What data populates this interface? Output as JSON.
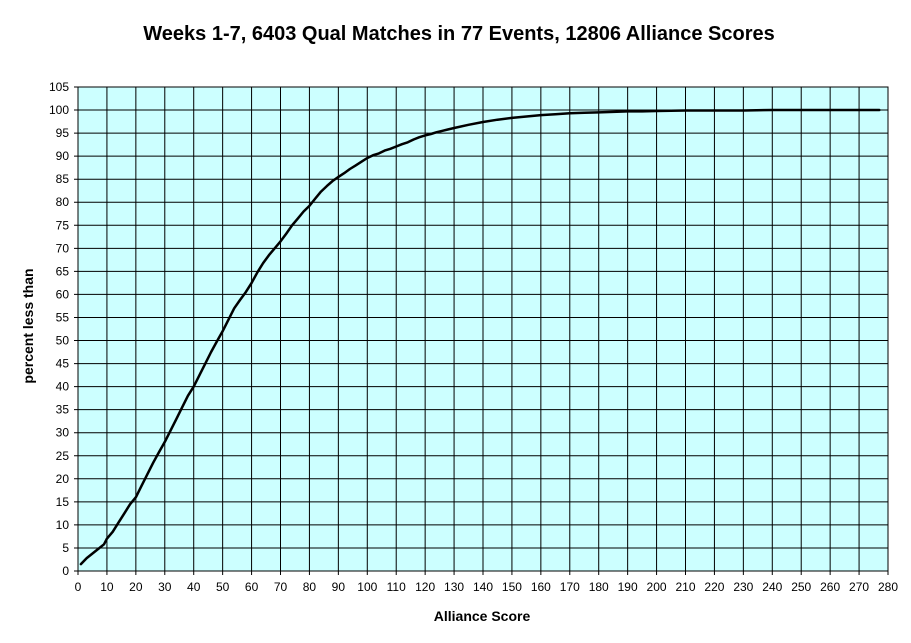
{
  "chart_data": {
    "type": "line",
    "title": "Weeks 1-7, 6403 Qual Matches in 77 Events, 12806 Alliance Scores",
    "xlabel": "Alliance Score",
    "ylabel": "percent less than",
    "xlim": [
      0,
      280
    ],
    "ylim": [
      0,
      105
    ],
    "x_ticks": [
      0,
      10,
      20,
      30,
      40,
      50,
      60,
      70,
      80,
      90,
      100,
      110,
      120,
      130,
      140,
      150,
      160,
      170,
      180,
      190,
      200,
      210,
      220,
      230,
      240,
      250,
      260,
      270,
      280
    ],
    "y_ticks": [
      0,
      5,
      10,
      15,
      20,
      25,
      30,
      35,
      40,
      45,
      50,
      55,
      60,
      65,
      70,
      75,
      80,
      85,
      90,
      95,
      100,
      105
    ],
    "grid": true,
    "legend": "none",
    "colors": {
      "plot_background": "#ccffff",
      "grid": "#000000",
      "line": "#000000"
    },
    "series": [
      {
        "x": [
          1,
          3,
          5,
          7,
          9,
          10,
          12,
          14,
          16,
          18,
          20,
          22,
          24,
          26,
          28,
          30,
          32,
          34,
          36,
          38,
          40,
          42,
          44,
          46,
          48,
          50,
          52,
          54,
          56,
          58,
          60,
          62,
          64,
          66,
          68,
          70,
          72,
          74,
          76,
          78,
          80,
          82,
          84,
          86,
          88,
          90,
          92,
          94,
          96,
          98,
          100,
          102,
          104,
          106,
          108,
          110,
          112,
          114,
          116,
          118,
          120,
          122,
          124,
          126,
          128,
          130,
          135,
          140,
          145,
          150,
          155,
          160,
          165,
          170,
          175,
          180,
          185,
          190,
          195,
          200,
          210,
          220,
          230,
          240,
          250,
          260,
          270,
          277
        ],
        "y": [
          1.5,
          2.8,
          3.8,
          4.8,
          5.8,
          7.0,
          8.5,
          10.5,
          12.5,
          14.5,
          16.0,
          18.5,
          21.0,
          23.5,
          25.8,
          28.0,
          30.5,
          33.0,
          35.5,
          38.0,
          40.0,
          42.5,
          45.0,
          47.5,
          49.8,
          52.0,
          54.5,
          57.0,
          58.8,
          60.5,
          62.5,
          64.8,
          66.8,
          68.5,
          70.0,
          71.5,
          73.2,
          75.0,
          76.5,
          78.0,
          79.2,
          80.8,
          82.3,
          83.5,
          84.6,
          85.5,
          86.3,
          87.2,
          88.0,
          88.8,
          89.6,
          90.2,
          90.6,
          91.2,
          91.6,
          92.1,
          92.6,
          93.0,
          93.6,
          94.1,
          94.5,
          94.8,
          95.2,
          95.5,
          95.8,
          96.1,
          96.8,
          97.4,
          97.9,
          98.3,
          98.6,
          98.9,
          99.1,
          99.3,
          99.4,
          99.5,
          99.6,
          99.7,
          99.7,
          99.8,
          99.9,
          99.9,
          99.9,
          100,
          100,
          100,
          100,
          100
        ]
      }
    ]
  }
}
